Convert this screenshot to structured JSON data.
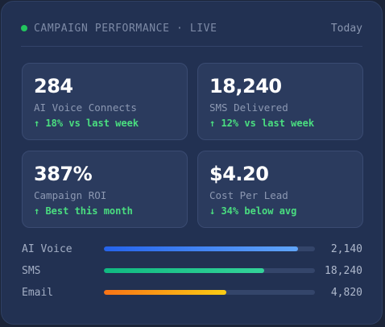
{
  "header": {
    "title": "CAMPAIGN PERFORMANCE · LIVE",
    "period": "Today",
    "live_color": "#22c55e"
  },
  "metrics": [
    {
      "value": "284",
      "label": "AI Voice Connects",
      "change": "↑ 18% vs last week"
    },
    {
      "value": "18,240",
      "label": "SMS Delivered",
      "change": "↑ 12% vs last week"
    },
    {
      "value": "387%",
      "label": "Campaign ROI",
      "change": "↑ Best this month"
    },
    {
      "value": "$4.20",
      "label": "Cost Per Lead",
      "change": "↓ 34% below avg"
    }
  ],
  "channels": [
    {
      "label": "AI Voice",
      "value": "2,140",
      "fill_fraction": 0.92
    },
    {
      "label": "SMS",
      "value": "18,240",
      "fill_fraction": 0.76
    },
    {
      "label": "Email",
      "value": "4,820",
      "fill_fraction": 0.58
    }
  ],
  "colors": {
    "positive": "#4ade80",
    "voice_bar": "#3b82f6",
    "sms_bar": "#10b981",
    "email_bar": "#f59e0b"
  }
}
